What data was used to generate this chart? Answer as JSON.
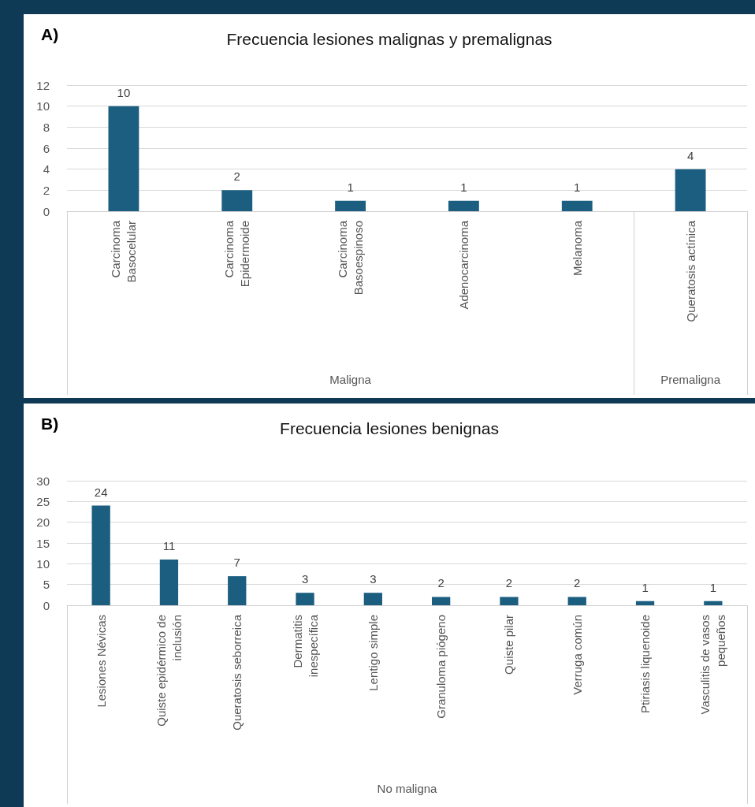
{
  "chart_data": [
    {
      "type": "bar",
      "title": "Frecuencia lesiones malignas y premalignas",
      "categories": [
        "Carcinoma\nBasocelular",
        "Carcinoma\nEpidermoide",
        "Carcinoma\nBasoespinoso",
        "Adenocarcinoma",
        "Melanoma",
        "Queratosis actínica"
      ],
      "values": [
        10,
        2,
        1,
        1,
        1,
        4
      ],
      "color": "#1b5e80",
      "ylim": [
        0,
        12
      ],
      "yticks": [
        0,
        2,
        4,
        6,
        8,
        10,
        12
      ],
      "grid": "y",
      "data_labels": true,
      "annotations": [
        "A)",
        "Maligna",
        "Premaligna"
      ]
    },
    {
      "type": "bar",
      "title": "Frecuencia lesiones benignas",
      "categories": [
        "Lesiones Névicas",
        "Quiste epidérmico de\ninclusión",
        "Queratosis seborreica",
        "Dermatitis\ninespecífica",
        "Lentigo simple",
        "Granuloma piógeno",
        "Quiste pilar",
        "Verruga común",
        "Ptiriasis liquenoide",
        "Vasculitis de vasos\npequeños"
      ],
      "values": [
        24,
        11,
        7,
        3,
        3,
        2,
        2,
        2,
        1,
        1
      ],
      "color": "#1b5e80",
      "ylim": [
        0,
        30
      ],
      "yticks": [
        0,
        5,
        10,
        15,
        20,
        25,
        30
      ],
      "grid": "y",
      "data_labels": true,
      "annotations": [
        "B)",
        "No maligna"
      ]
    }
  ]
}
